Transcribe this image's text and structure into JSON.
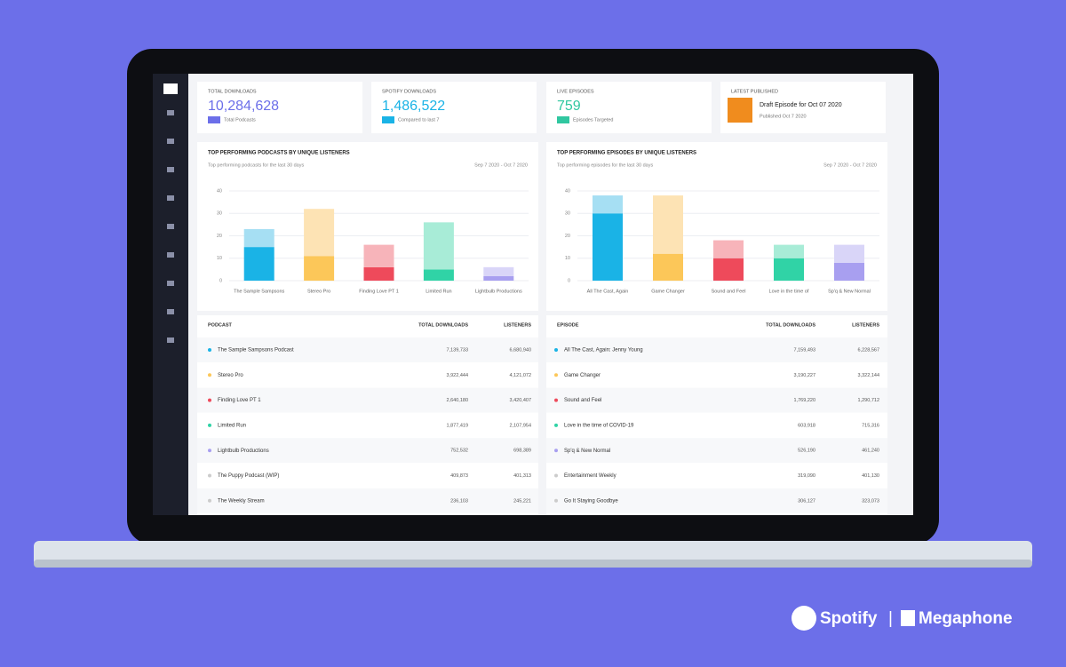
{
  "kpis": [
    {
      "label": "TOTAL DOWNLOADS",
      "value": "10,284,628",
      "note": "Total Podcasts"
    },
    {
      "label": "SPOTIFY DOWNLOADS",
      "value": "1,486,522",
      "note": "Compared to last 7"
    },
    {
      "label": "LIVE EPISODES",
      "value": "759",
      "note": "Episodes Targeted"
    },
    {
      "label": "LATEST PUBLISHED",
      "value": "Draft Episode for Oct 07 2020",
      "note": "Published Oct 7 2020"
    }
  ],
  "chart_data": [
    {
      "type": "bar",
      "title": "TOP PERFORMING PODCASTS BY UNIQUE LISTENERS",
      "subtitle": "Top performing podcasts for the last 30 days",
      "date_range": "Sep 7 2020 - Oct 7 2020",
      "categories": [
        "The Sample Sampsons",
        "Stereo Pro",
        "Finding Love PT 1",
        "Limited Run",
        "Lightbulb Productions"
      ],
      "series": [
        {
          "values": [
            15,
            11,
            6,
            5,
            2
          ]
        },
        {
          "values": [
            8,
            21,
            10,
            21,
            4
          ]
        }
      ],
      "colors": [
        "#1ab3e6",
        "#fcc759",
        "#ee4a5b",
        "#30d3a6",
        "#a89ff0"
      ],
      "light_colors": [
        "#a6dff3",
        "#fde3b4",
        "#f7b4ba",
        "#a8ecd7",
        "#d9d5f8"
      ],
      "ylim": [
        0,
        40
      ],
      "yticks": [
        0,
        10,
        20,
        30,
        40
      ],
      "grid": true
    },
    {
      "type": "bar",
      "title": "TOP PERFORMING EPISODES BY UNIQUE LISTENERS",
      "subtitle": "Top performing episodes for the last 30 days",
      "date_range": "Sep 7 2020 - Oct 7 2020",
      "categories": [
        "All The Cast, Again",
        "Game Changer",
        "Sound and Feel",
        "Love in the time of",
        "Sp'q & New Normal"
      ],
      "series": [
        {
          "values": [
            30,
            12,
            10,
            10,
            8
          ]
        },
        {
          "values": [
            8,
            26,
            8,
            6,
            8
          ]
        }
      ],
      "colors": [
        "#1ab3e6",
        "#fcc759",
        "#ee4a5b",
        "#30d3a6",
        "#a89ff0"
      ],
      "light_colors": [
        "#a6dff3",
        "#fde3b4",
        "#f7b4ba",
        "#a8ecd7",
        "#d9d5f8"
      ],
      "ylim": [
        0,
        40
      ],
      "yticks": [
        0,
        10,
        20,
        30,
        40
      ],
      "grid": true
    }
  ],
  "tables": [
    {
      "header": [
        "PODCAST",
        "TOTAL DOWNLOADS",
        "LISTENERS"
      ],
      "rows": [
        [
          "The Sample Sampsons Podcast",
          "7,139,733",
          "6,680,940"
        ],
        [
          "Stereo Pro",
          "3,922,444",
          "4,121,072"
        ],
        [
          "Finding Love PT 1",
          "2,640,180",
          "3,420,407"
        ],
        [
          "Limited Run",
          "1,877,419",
          "2,107,954"
        ],
        [
          "Lightbulb Productions",
          "752,532",
          "698,389"
        ],
        [
          "The Puppy Podcast (WIP)",
          "409,873",
          "401,313"
        ],
        [
          "The Weekly Stream",
          "236,103",
          "245,221"
        ]
      ]
    },
    {
      "header": [
        "EPISODE",
        "TOTAL DOWNLOADS",
        "LISTENERS"
      ],
      "rows": [
        [
          "All The Cast, Again: Jenny Young",
          "7,159,493",
          "6,228,567"
        ],
        [
          "Game Changer",
          "3,190,227",
          "3,322,144"
        ],
        [
          "Sound and Feel",
          "1,769,220",
          "1,290,712"
        ],
        [
          "Love in the time of COVID-19",
          "603,918",
          "715,316"
        ],
        [
          "Sp'q & New Normal",
          "526,190",
          "461,240"
        ],
        [
          "Entertainment Weekly",
          "319,090",
          "401,130"
        ],
        [
          "Go It Staying Goodbye",
          "306,127",
          "323,073"
        ]
      ]
    }
  ],
  "brands": [
    "Spotify",
    "|",
    "Megaphone"
  ]
}
